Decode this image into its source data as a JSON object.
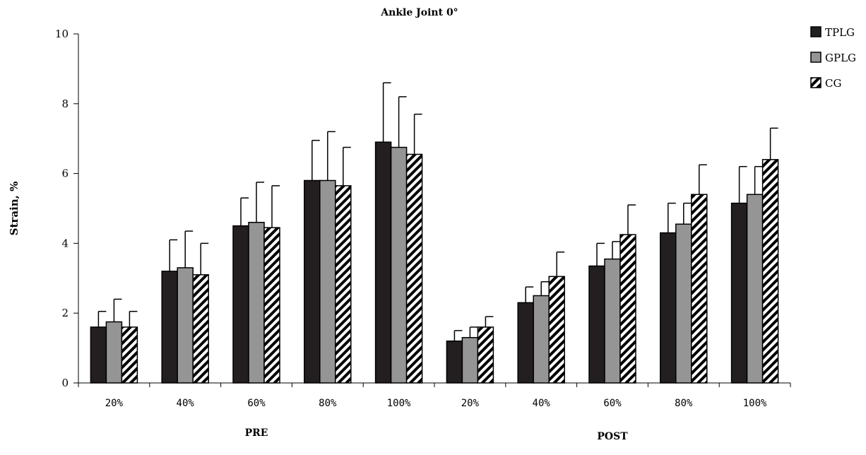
{
  "chart_data": {
    "type": "bar",
    "title": "Ankle Joint  0°",
    "ylabel": "Strain, %",
    "xlabel": "",
    "ylim": [
      0,
      10
    ],
    "yticks": [
      0,
      2,
      4,
      6,
      8,
      10
    ],
    "grid": false,
    "legend_position": "top-right",
    "categories": [
      "20%",
      "40%",
      "60%",
      "80%",
      "100%",
      "20%",
      "40%",
      "60%",
      "80%",
      "100%"
    ],
    "groups": [
      {
        "label": "PRE",
        "categories": [
          "20%",
          "40%",
          "60%",
          "80%",
          "100%"
        ]
      },
      {
        "label": "POST",
        "categories": [
          "20%",
          "40%",
          "60%",
          "80%",
          "100%"
        ]
      }
    ],
    "series": [
      {
        "name": "TPLG",
        "fill": "#231f20",
        "pattern": "solid",
        "values": [
          1.6,
          3.2,
          4.5,
          5.8,
          6.9,
          1.2,
          2.3,
          3.35,
          4.3,
          5.15
        ],
        "errors": [
          0.45,
          0.9,
          0.8,
          1.15,
          1.7,
          0.3,
          0.45,
          0.65,
          0.85,
          1.05
        ]
      },
      {
        "name": "GPLG",
        "fill": "#959595",
        "pattern": "solid",
        "values": [
          1.75,
          3.3,
          4.6,
          5.8,
          6.75,
          1.3,
          2.5,
          3.55,
          4.55,
          5.4
        ],
        "errors": [
          0.65,
          1.05,
          1.15,
          1.4,
          1.45,
          0.3,
          0.4,
          0.5,
          0.6,
          0.8
        ]
      },
      {
        "name": "CG",
        "fill": "#ffffff",
        "pattern": "diagonal-stripes",
        "values": [
          1.6,
          3.1,
          4.45,
          5.65,
          6.55,
          1.6,
          3.05,
          4.25,
          5.4,
          6.4
        ],
        "errors": [
          0.45,
          0.9,
          1.2,
          1.1,
          1.15,
          0.3,
          0.7,
          0.85,
          0.85,
          0.9
        ]
      }
    ]
  }
}
